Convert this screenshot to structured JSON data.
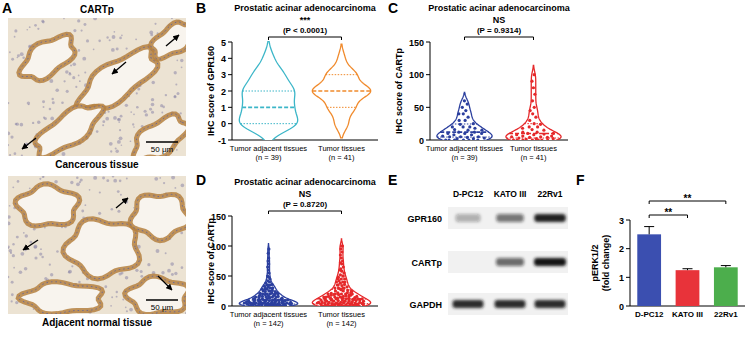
{
  "panel_a": {
    "panel": "A",
    "stain": "CARTp",
    "images": [
      {
        "caption": "Cancerous tissue",
        "scale_bar": "50 μm"
      },
      {
        "caption": "Adjacent normal tissue",
        "scale_bar": "50 μm"
      }
    ]
  },
  "chart_data": [
    {
      "panel": "B",
      "type": "violin",
      "title": "Prostatic acinar adenocarcinoma",
      "y_label": "IHC score of GPR160",
      "categories": [
        "Tumor adjacent tissues (n = 39)",
        "Tumor tissues (n = 41)"
      ],
      "colors": [
        "#3cb6c8",
        "#f08a2c"
      ],
      "marker": "none",
      "annotations": [
        "***",
        "(P < 0.0001)"
      ],
      "ylim": [
        -1,
        5
      ],
      "yticks": [
        -1,
        0,
        1,
        2,
        3,
        4,
        5
      ],
      "values": [
        [
          0,
          0,
          0,
          0,
          0,
          0,
          0,
          0,
          0,
          0,
          0,
          0,
          1,
          1,
          1,
          1,
          1,
          1,
          1,
          1,
          1,
          2,
          2,
          2,
          2,
          2,
          2,
          2,
          2,
          2,
          2,
          3,
          3,
          3,
          3,
          3,
          3,
          4,
          4
        ],
        [
          0,
          0,
          0,
          0,
          1,
          1,
          1,
          1,
          1,
          1,
          1,
          1,
          2,
          2,
          2,
          2,
          2,
          2,
          2,
          2,
          2,
          2,
          2,
          2,
          2,
          2,
          2,
          2,
          2,
          2,
          3,
          3,
          3,
          3,
          3,
          3,
          3,
          3,
          3,
          4,
          4
        ]
      ]
    },
    {
      "panel": "C",
      "type": "violin",
      "title": "Prostatic acinar adenocarcinoma",
      "y_label": "IHC score of CARTp",
      "categories": [
        "Tumor adjacent tissues (n = 39)",
        "Tumor tissues (n = 41)"
      ],
      "colors": [
        "#2b3f9e",
        "#e5282a"
      ],
      "marker": "circle",
      "annotations": [
        "NS",
        "(P = 0.9314)"
      ],
      "ylim": [
        0,
        150
      ],
      "yticks": [
        0,
        50,
        100,
        150
      ],
      "values": [
        [
          0,
          0,
          0,
          0,
          0,
          0,
          2,
          2,
          3,
          4,
          5,
          5,
          5,
          6,
          8,
          8,
          10,
          10,
          10,
          12,
          12,
          15,
          15,
          16,
          18,
          20,
          20,
          20,
          24,
          25,
          30,
          30,
          35,
          40,
          40,
          45,
          50,
          55,
          60
        ],
        [
          0,
          0,
          0,
          0,
          0,
          0,
          0,
          1,
          2,
          2,
          3,
          4,
          4,
          5,
          5,
          6,
          6,
          8,
          8,
          9,
          10,
          10,
          12,
          12,
          15,
          16,
          18,
          20,
          20,
          24,
          25,
          30,
          35,
          40,
          45,
          50,
          60,
          70,
          80,
          90,
          100
        ]
      ]
    },
    {
      "panel": "D",
      "type": "violin",
      "title": "Prostatic acinar adenocarcinoma",
      "y_label": "IHC score of CARTp",
      "categories": [
        "Tumor adjacent tissues (n = 142)",
        "Tumor tissues (n = 142)"
      ],
      "colors": [
        "#2b3f9e",
        "#e5282a"
      ],
      "marker": "circle",
      "annotations": [
        "NS",
        "(P = 0.8720)"
      ],
      "ylim": [
        0,
        150
      ],
      "yticks": [
        0,
        50,
        100,
        150
      ],
      "values": [
        [
          0,
          0,
          0,
          0,
          0,
          0,
          0,
          0,
          0,
          0,
          0,
          0,
          0,
          0,
          1,
          1,
          1,
          1,
          2,
          2,
          2,
          2,
          2,
          3,
          3,
          3,
          3,
          3,
          4,
          4,
          4,
          4,
          5,
          5,
          5,
          5,
          5,
          5,
          5,
          6,
          6,
          6,
          6,
          7,
          7,
          7,
          8,
          8,
          8,
          8,
          9,
          9,
          10,
          10,
          10,
          10,
          10,
          10,
          11,
          12,
          12,
          12,
          12,
          13,
          14,
          14,
          15,
          15,
          15,
          15,
          16,
          16,
          17,
          18,
          18,
          19,
          20,
          20,
          20,
          20,
          20,
          21,
          22,
          24,
          24,
          25,
          25,
          26,
          28,
          28,
          30,
          30,
          30,
          32,
          33,
          35,
          35,
          36,
          2,
          3,
          4,
          5,
          6,
          8,
          10,
          12,
          14,
          16,
          18,
          20,
          22,
          25,
          28,
          30,
          35,
          38,
          40,
          42,
          45,
          48,
          50,
          55,
          60,
          65,
          70,
          75,
          0,
          0,
          1,
          2,
          3,
          4,
          5,
          6,
          8,
          10,
          12,
          80,
          88,
          95,
          0,
          5
        ],
        [
          0,
          0,
          0,
          0,
          0,
          0,
          0,
          0,
          0,
          0,
          0,
          0,
          0,
          0,
          0,
          0,
          1,
          1,
          1,
          2,
          2,
          2,
          2,
          3,
          3,
          3,
          3,
          4,
          4,
          4,
          5,
          5,
          5,
          5,
          5,
          5,
          6,
          6,
          6,
          7,
          7,
          8,
          8,
          8,
          8,
          9,
          9,
          10,
          10,
          10,
          10,
          10,
          10,
          11,
          12,
          12,
          12,
          13,
          14,
          15,
          15,
          15,
          15,
          16,
          16,
          18,
          18,
          19,
          20,
          20,
          20,
          20,
          20,
          21,
          22,
          22,
          24,
          25,
          25,
          26,
          28,
          30,
          30,
          30,
          32,
          34,
          35,
          36,
          38,
          40,
          40,
          42,
          45,
          45,
          48,
          50,
          52,
          55,
          58,
          60,
          2,
          4,
          6,
          8,
          10,
          12,
          14,
          16,
          18,
          20,
          25,
          30,
          35,
          40,
          0,
          0,
          1,
          3,
          5,
          7,
          9,
          11,
          13,
          15,
          17,
          19,
          22,
          27,
          45,
          50,
          62,
          65,
          70,
          72,
          75,
          80,
          85,
          90,
          95,
          100,
          100,
          0
        ]
      ]
    },
    {
      "panel": "F",
      "type": "bar",
      "y_label": "pERK1/2 (fold change)",
      "categories": [
        "D-PC12",
        "KATO III",
        "22Rv1"
      ],
      "values": [
        2.5,
        1.25,
        1.35
      ],
      "errors": [
        0.27,
        0.05,
        0.06
      ],
      "colors": [
        "#3b4fb0",
        "#e8333a",
        "#4cae4c"
      ],
      "annotations": [
        "**",
        "**"
      ],
      "ylim": [
        0,
        3
      ],
      "yticks": [
        0,
        1,
        2,
        3
      ]
    }
  ],
  "panel_e": {
    "panel": "E",
    "type": "western_blot",
    "lanes": [
      "D-PC12",
      "KATO III",
      "22Rv1"
    ],
    "rows": [
      {
        "label": "GPR160",
        "intensity": [
          0.3,
          0.55,
          0.95
        ]
      },
      {
        "label": "CARTp",
        "intensity": [
          0,
          0.6,
          1
        ]
      },
      {
        "label": "GAPDH",
        "intensity": [
          0.9,
          0.9,
          0.9
        ]
      }
    ]
  }
}
